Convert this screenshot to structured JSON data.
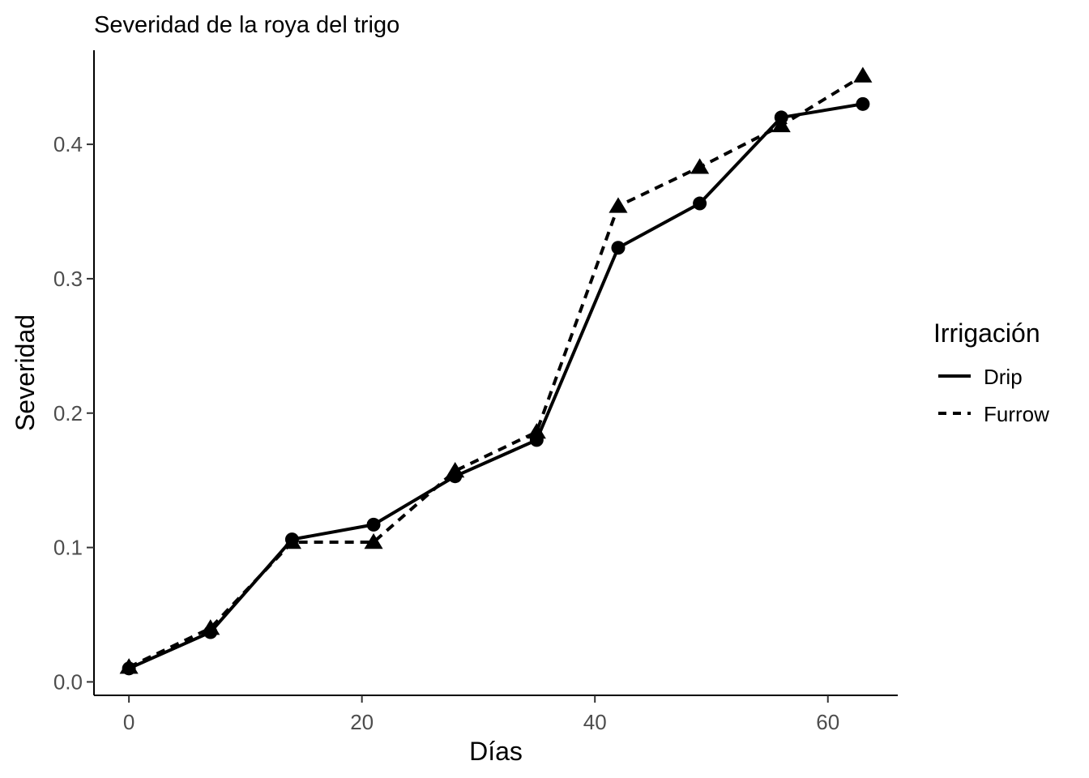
{
  "chart_data": {
    "type": "line",
    "title": "Severidad de la roya del trigo",
    "xlabel": "Días",
    "ylabel": "Severidad",
    "xlim": [
      -3,
      66
    ],
    "ylim": [
      -0.01,
      0.47
    ],
    "x_ticks": [
      0,
      20,
      40,
      60
    ],
    "y_ticks": [
      0.0,
      0.1,
      0.2,
      0.3,
      0.4
    ],
    "x_tick_labels": [
      "0",
      "20",
      "40",
      "60"
    ],
    "y_tick_labels": [
      "0.0",
      "0.1",
      "0.2",
      "0.3",
      "0.4"
    ],
    "grid": false,
    "legend": {
      "title": "Irrigación",
      "position": "right"
    },
    "x": [
      0,
      7,
      14,
      21,
      28,
      35,
      42,
      49,
      56,
      63
    ],
    "series": [
      {
        "name": "Drip",
        "line_style": "solid",
        "marker": "circle",
        "color": "#000000",
        "values": [
          0.01,
          0.037,
          0.106,
          0.117,
          0.153,
          0.18,
          0.323,
          0.356,
          0.42,
          0.43
        ]
      },
      {
        "name": "Furrow",
        "line_style": "dashed",
        "marker": "triangle",
        "color": "#000000",
        "values": [
          0.011,
          0.04,
          0.104,
          0.104,
          0.157,
          0.186,
          0.354,
          0.383,
          0.414,
          0.451
        ]
      }
    ]
  }
}
